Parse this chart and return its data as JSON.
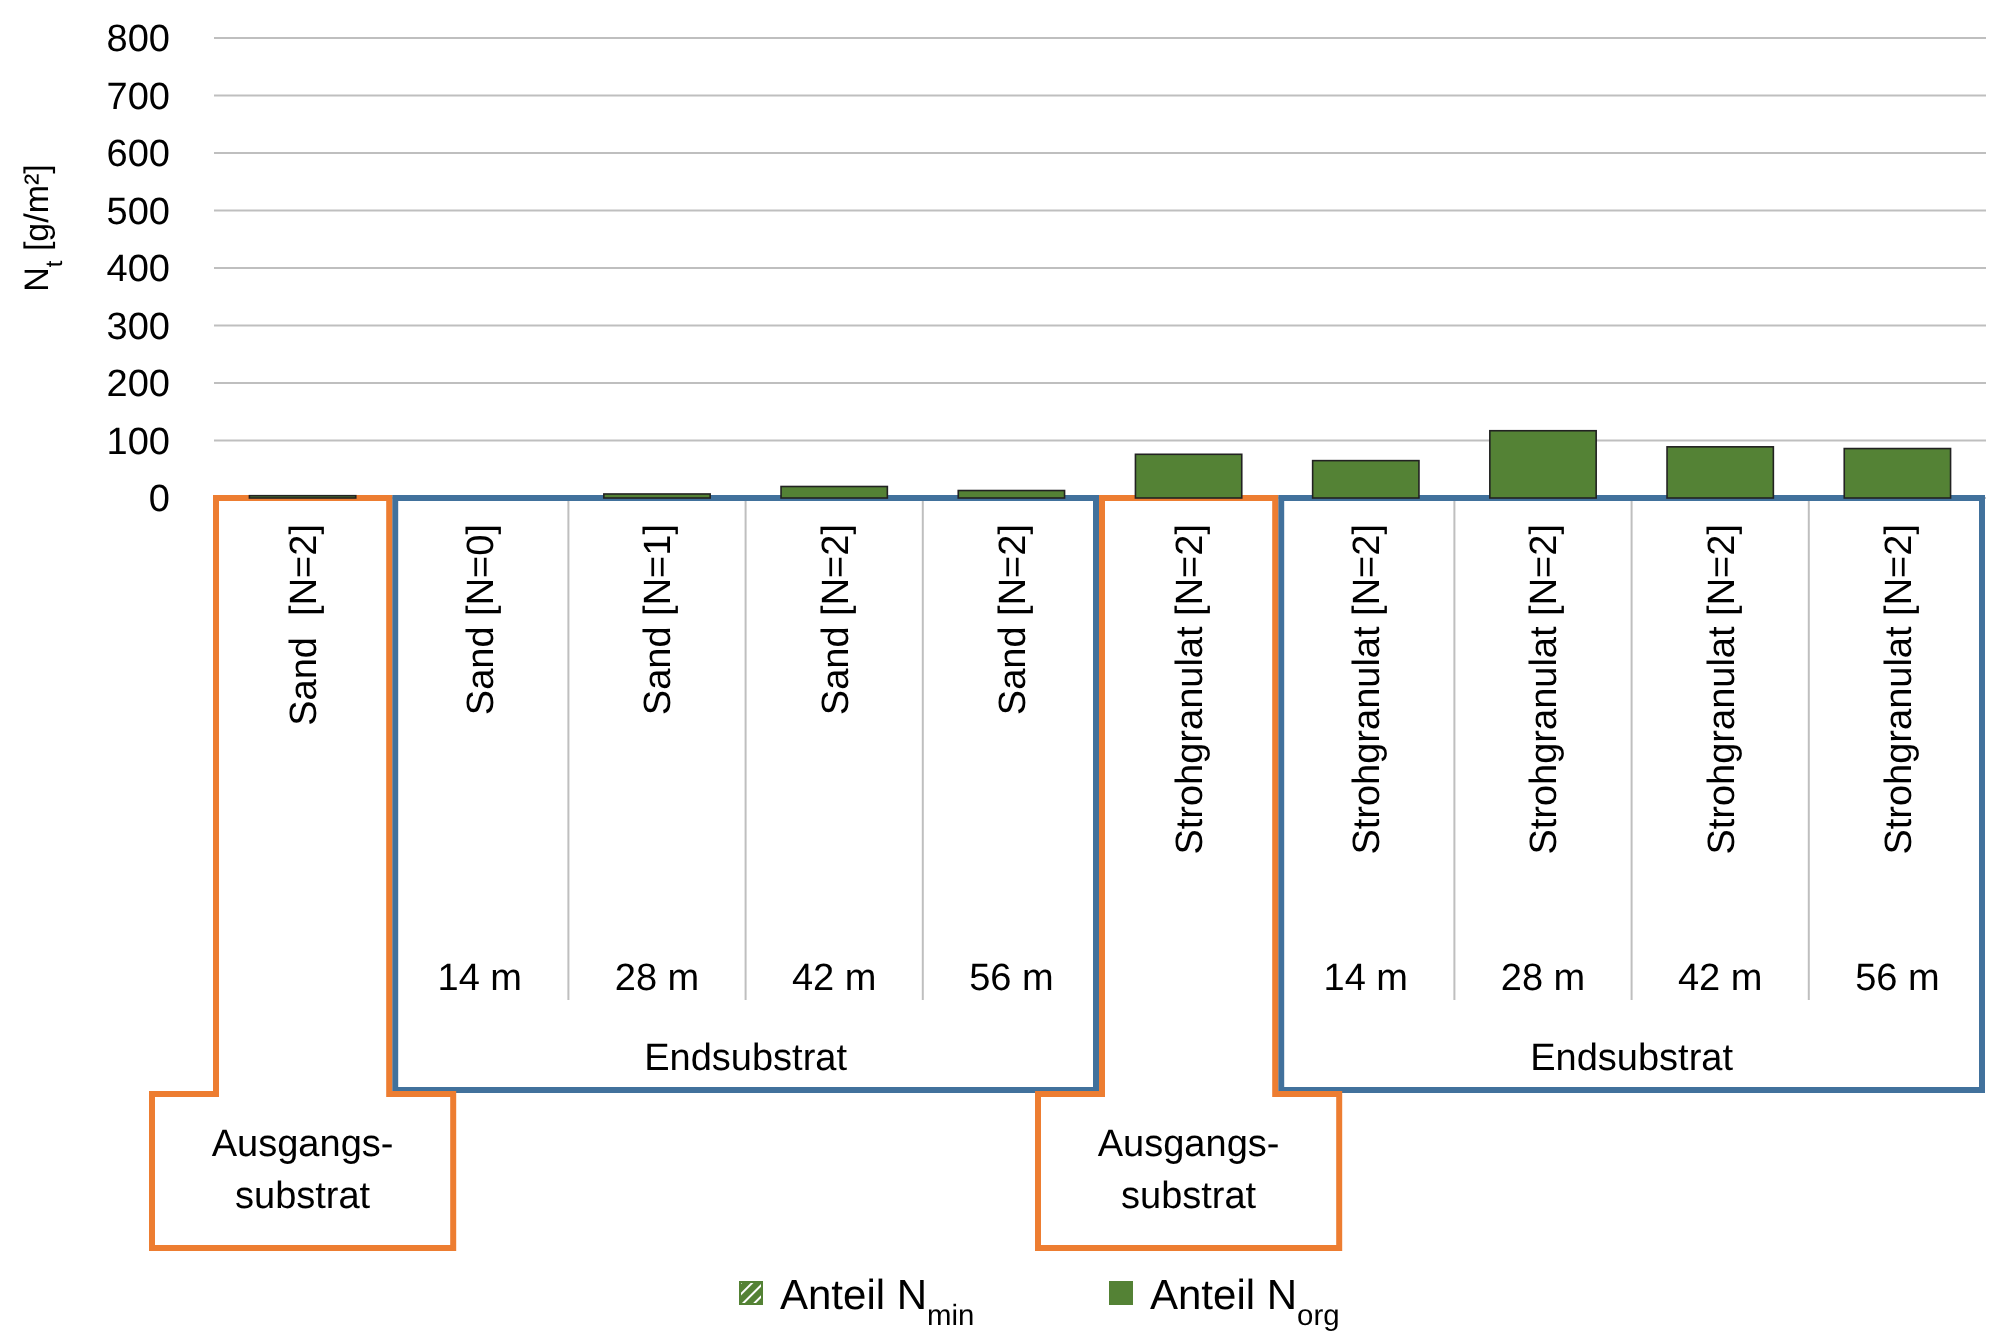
{
  "chart_data": {
    "type": "bar",
    "ylabel": "N$_{t}$ [g/m²]",
    "categories": [
      "Sand  [N=2]",
      "Sand [N=0]",
      "Sand [N=1]",
      "Sand [N=2]",
      "Sand [N=2]",
      "Strohgranulat [N=2]",
      "Strohgranulat [N=2]",
      "Strohgranulat [N=2]",
      "Strohgranulat [N=2]",
      "Strohgranulat [N=2]"
    ],
    "series": [
      {
        "name": "Anteil N$_{min}$",
        "color": "#548235",
        "values": [
          null,
          null,
          null,
          null,
          null,
          null,
          null,
          null,
          null,
          null
        ]
      },
      {
        "name": "Anteil N$_{org}$",
        "color": "#548235",
        "values": [
          4,
          null,
          7,
          20,
          13,
          76,
          65,
          117,
          89,
          86
        ]
      }
    ],
    "ylim": [
      0,
      800
    ],
    "yticks": [
      0,
      100,
      200,
      300,
      400,
      500,
      600,
      700,
      800
    ],
    "grid": "y",
    "legend": "bottom",
    "annotations": [
      "14 m",
      "28 m",
      "42 m",
      "56 m",
      "14 m",
      "28 m",
      "42 m",
      "56 m",
      "Endsubstrat",
      "Endsubstrat",
      "Ausgangs-\nsubstrat",
      "Ausgangs-\nsubstrat"
    ]
  }
}
